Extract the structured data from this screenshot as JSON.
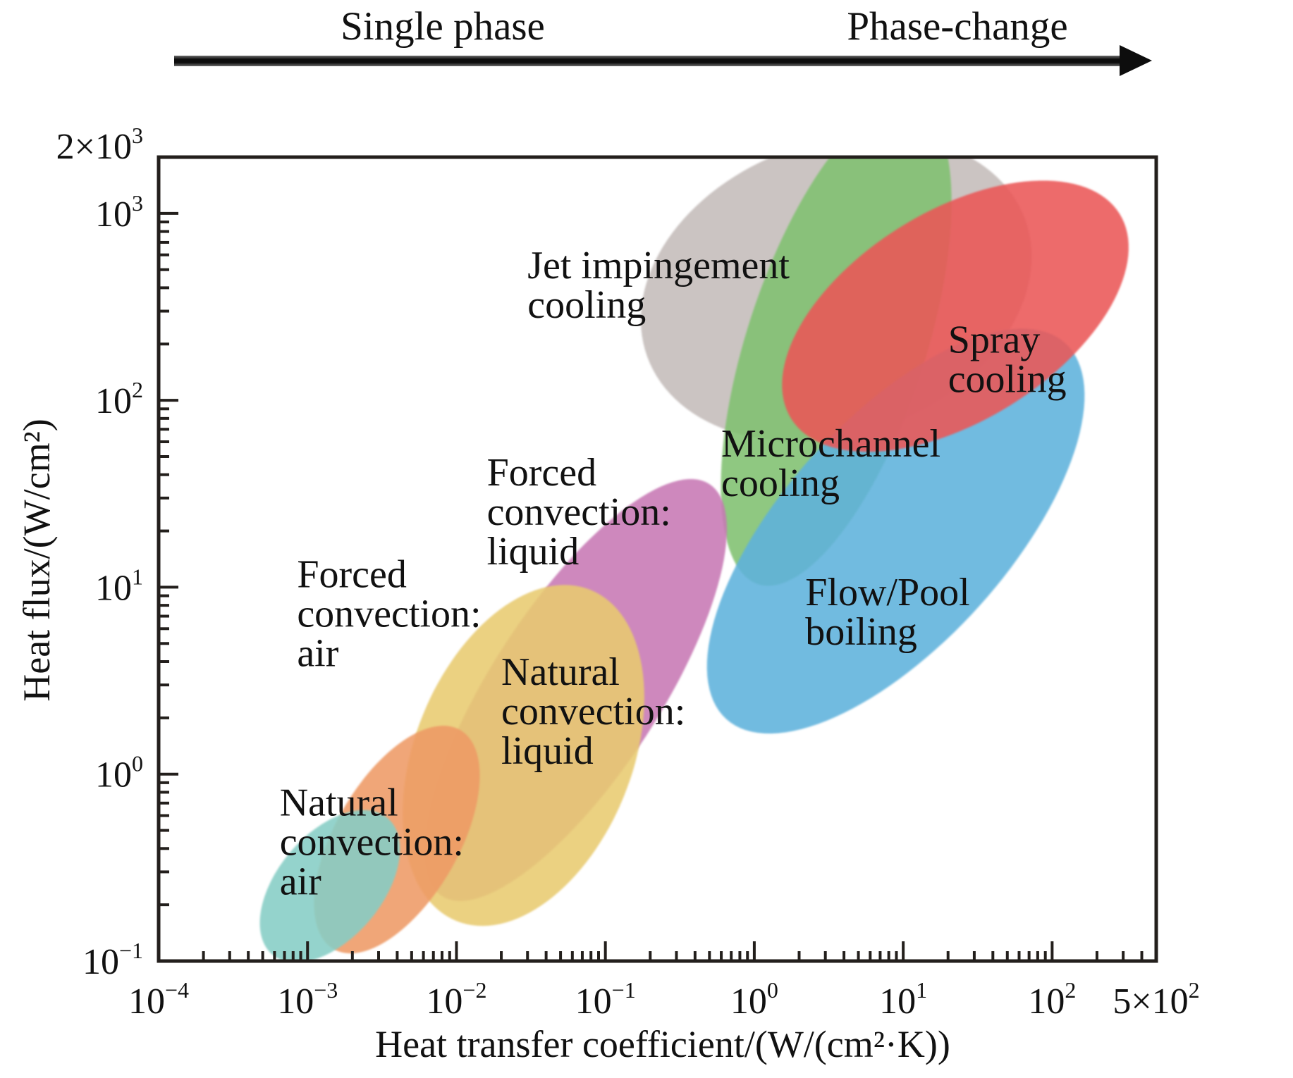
{
  "chart_data": {
    "type": "area",
    "subtype": "log-log region chart (ellipses)",
    "title": "",
    "xlabel": "Heat transfer coefficient/(W/(cm²·K))",
    "ylabel": "Heat flux/(W/cm²)",
    "xscale": "log",
    "yscale": "log",
    "xlim": [
      0.0001,
      500
    ],
    "ylim": [
      0.1,
      2000
    ],
    "grid": false,
    "legend": "none (regions labeled inline)",
    "x_ticks": [
      {
        "value": 0.0001,
        "base": "10",
        "exp": "−4"
      },
      {
        "value": 0.001,
        "base": "10",
        "exp": "−3"
      },
      {
        "value": 0.01,
        "base": "10",
        "exp": "−2"
      },
      {
        "value": 0.1,
        "base": "10",
        "exp": "−1"
      },
      {
        "value": 1,
        "base": "10",
        "exp": "0"
      },
      {
        "value": 10,
        "base": "10",
        "exp": "1"
      },
      {
        "value": 100,
        "base": "10",
        "exp": "2"
      },
      {
        "value": 500,
        "base": "5×10",
        "exp": "2"
      }
    ],
    "y_ticks": [
      {
        "value": 0.1,
        "base": "10",
        "exp": "−1"
      },
      {
        "value": 1,
        "base": "10",
        "exp": "0"
      },
      {
        "value": 10,
        "base": "10",
        "exp": "1"
      },
      {
        "value": 100,
        "base": "10",
        "exp": "2"
      },
      {
        "value": 1000,
        "base": "10",
        "exp": "3"
      },
      {
        "value": 2000,
        "base": "2×10",
        "exp": "3"
      }
    ],
    "phase_arrow": {
      "start_label": "Single phase",
      "end_label": "Phase-change"
    },
    "regions": [
      {
        "name": "Jet impingement cooling",
        "label_lines": [
          "Jet impingement",
          "cooling"
        ],
        "color": "#c4bcba",
        "h_range": [
          0.4,
          40
        ],
        "q_range": [
          60,
          1900
        ],
        "center_log": [
          0.55,
          2.6
        ],
        "semi_axes_decades": [
          1.35,
          0.78
        ],
        "rotation_deg": -20,
        "label_at": [
          0.03,
          450
        ]
      },
      {
        "name": "Microchannel cooling",
        "label_lines": [
          "Microchannel",
          "cooling"
        ],
        "color": "#7fc06f",
        "h_range": [
          0.7,
          12
        ],
        "q_range": [
          13,
          1900
        ],
        "center_log": [
          0.55,
          2.3
        ],
        "semi_axes_decades": [
          0.6,
          1.35
        ],
        "rotation_deg": 18,
        "label_at": [
          0.6,
          50
        ]
      },
      {
        "name": "Flow/Pool boiling",
        "label_lines": [
          "Flow/Pool",
          "boiling"
        ],
        "color": "#5fb2dc",
        "h_range": [
          0.35,
          150
        ],
        "q_range": [
          2.7,
          400
        ],
        "center_log": [
          0.95,
          1.3
        ],
        "semi_axes_decades": [
          1.7,
          0.6
        ],
        "rotation_deg": -48,
        "label_at": [
          2.2,
          8
        ]
      },
      {
        "name": "Spray cooling",
        "label_lines": [
          "Spray",
          "cooling"
        ],
        "color": "#ea5656",
        "h_range": [
          1.2,
          350
        ],
        "q_range": [
          55,
          1300
        ],
        "center_log": [
          1.35,
          2.45
        ],
        "semi_axes_decades": [
          1.3,
          0.56
        ],
        "rotation_deg": -32,
        "label_at": [
          20,
          180
        ]
      },
      {
        "name": "Forced convection: liquid",
        "label_lines": [
          "Forced",
          "convection:",
          "liquid"
        ],
        "color": "#c777b4",
        "h_range": [
          0.005,
          1.2
        ],
        "q_range": [
          0.1,
          75
        ],
        "center_log": [
          -1.2,
          0.45
        ],
        "semi_axes_decades": [
          1.65,
          0.45
        ],
        "rotation_deg": -57,
        "label_at": [
          0.016,
          35
        ]
      },
      {
        "name": "Natural convection: liquid",
        "label_lines": [
          "Natural",
          "convection:",
          "liquid"
        ],
        "color": "#e8cb70",
        "h_range": [
          0.005,
          0.5
        ],
        "q_range": [
          0.1,
          15
        ],
        "center_log": [
          -1.55,
          0.1
        ],
        "semi_axes_decades": [
          1.2,
          0.58
        ],
        "rotation_deg": -68,
        "label_at": [
          0.02,
          3
        ]
      },
      {
        "name": "Forced convection: air",
        "label_lines": [
          "Forced",
          "convection:",
          "air"
        ],
        "color": "#ee9a64",
        "h_range": [
          0.0015,
          0.03
        ],
        "q_range": [
          0.1,
          4.5
        ],
        "center_log": [
          -2.4,
          -0.35
        ],
        "semi_axes_decades": [
          0.85,
          0.33
        ],
        "rotation_deg": -60,
        "label_at": [
          0.00085,
          10
        ]
      },
      {
        "name": "Natural convection: air",
        "label_lines": [
          "Natural",
          "convection:",
          "air"
        ],
        "color": "#85cdc5",
        "h_range": [
          0.0004,
          0.007
        ],
        "q_range": [
          0.12,
          1.2
        ],
        "center_log": [
          -2.85,
          -0.6
        ],
        "semi_axes_decades": [
          0.6,
          0.28
        ],
        "rotation_deg": -50,
        "label_at": [
          0.00065,
          0.6
        ]
      }
    ]
  }
}
